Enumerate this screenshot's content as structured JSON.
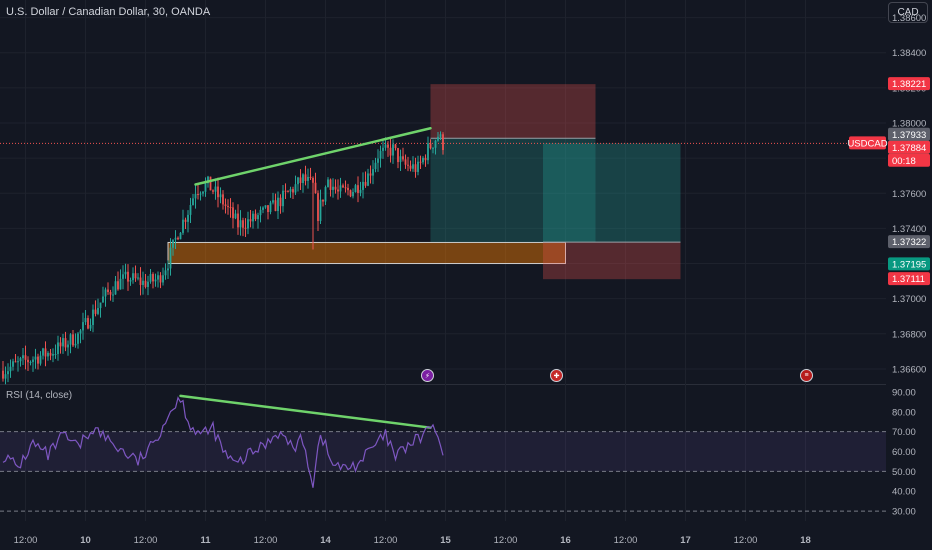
{
  "header": {
    "title": "U.S. Dollar / Canadian Dollar, 30, OANDA",
    "currency_button": "CAD"
  },
  "rsi_panel": {
    "title": "RSI (14, close)"
  },
  "colors": {
    "background": "#131722",
    "up": "#26a69a",
    "down": "#ef5350",
    "trendline": "#6fd36b",
    "rsi_line": "#7e57c2",
    "rsi_band": "#7e57c2",
    "stop_zone": "#ef5350",
    "target_zone": "#26a69a",
    "support_zone": "#f57c00"
  },
  "chart_data": [
    {
      "type": "candlestick",
      "title": "U.S. Dollar / Canadian Dollar, 30, OANDA",
      "symbol": "USDCAD",
      "ylim": [
        1.3652,
        1.387
      ],
      "y_ticks": [
        "1.36600",
        "1.36800",
        "1.37000",
        "1.37200",
        "1.37400",
        "1.37600",
        "1.37800",
        "1.38000",
        "1.38200",
        "1.38400",
        "1.38600"
      ],
      "x_tick_labels": [
        "12:00",
        "10",
        "12:00",
        "11",
        "12:00",
        "14",
        "12:00",
        "15",
        "12:00",
        "16",
        "12:00",
        "17",
        "12:00",
        "18"
      ],
      "price_labels": [
        {
          "text": "1.38221",
          "value": 1.38221,
          "kind": "stop"
        },
        {
          "text": "1.37933",
          "value": 1.37933,
          "kind": "neutral"
        },
        {
          "text": "1.37913",
          "value": 1.37913,
          "kind": "target"
        },
        {
          "text": "USDCAD",
          "value": 1.37884,
          "kind": "symbol"
        },
        {
          "text": "1.37884",
          "value": 1.37884,
          "kind": "stop"
        },
        {
          "text": "00:18",
          "value": 1.37845,
          "kind": "countdown"
        },
        {
          "text": "1.37322",
          "value": 1.37322,
          "kind": "neutral"
        },
        {
          "text": "1.37195",
          "value": 1.37195,
          "kind": "target"
        },
        {
          "text": "1.37111",
          "value": 1.37111,
          "kind": "stop"
        }
      ],
      "anchors": [
        {
          "x": 0,
          "close": 1.3659
        },
        {
          "x": 8,
          "close": 1.3664
        },
        {
          "x": 20,
          "close": 1.367
        },
        {
          "x": 30,
          "close": 1.3679
        },
        {
          "x": 40,
          "close": 1.37
        },
        {
          "x": 45,
          "close": 1.3708
        },
        {
          "x": 50,
          "close": 1.3712
        },
        {
          "x": 56,
          "close": 1.3709
        },
        {
          "x": 62,
          "close": 1.3711
        },
        {
          "x": 66,
          "close": 1.3721
        },
        {
          "x": 70,
          "close": 1.3738
        },
        {
          "x": 74,
          "close": 1.375
        },
        {
          "x": 77,
          "close": 1.3762
        },
        {
          "x": 82,
          "close": 1.3765
        },
        {
          "x": 88,
          "close": 1.3755
        },
        {
          "x": 94,
          "close": 1.3742
        },
        {
          "x": 100,
          "close": 1.3745
        },
        {
          "x": 108,
          "close": 1.3752
        },
        {
          "x": 114,
          "close": 1.376
        },
        {
          "x": 120,
          "close": 1.3768
        },
        {
          "x": 124,
          "close": 1.3764
        },
        {
          "x": 126,
          "close": 1.3748
        },
        {
          "x": 130,
          "close": 1.3768
        },
        {
          "x": 134,
          "close": 1.376
        },
        {
          "x": 140,
          "close": 1.3762
        },
        {
          "x": 146,
          "close": 1.377
        },
        {
          "x": 150,
          "close": 1.3782
        },
        {
          "x": 156,
          "close": 1.3785
        },
        {
          "x": 160,
          "close": 1.3776
        },
        {
          "x": 166,
          "close": 1.3774
        },
        {
          "x": 170,
          "close": 1.3785
        },
        {
          "x": 174,
          "close": 1.3793
        },
        {
          "x": 176,
          "close": 1.3788
        }
      ],
      "spikes": [
        {
          "x": 124,
          "low": 1.3728
        }
      ],
      "bars_per_day": 48,
      "overlays": {
        "trendline": {
          "x": [
            77,
            171
          ],
          "y": [
            1.3765,
            1.3797
          ]
        },
        "support_zone": {
          "x": [
            66,
            225
          ],
          "y": [
            1.372,
            1.3732
          ]
        },
        "short_position": {
          "entry": 1.37913,
          "stop": 1.38221,
          "target": 1.37322,
          "x": [
            171,
            237
          ]
        },
        "long_position": {
          "entry": 1.37322,
          "stop": 1.37111,
          "target": 1.37884,
          "x": [
            216,
            271
          ]
        }
      }
    },
    {
      "type": "line",
      "title": "RSI (14, close)",
      "ylim": [
        25,
        93
      ],
      "y_ticks": [
        "30.00",
        "40.00",
        "50.00",
        "60.00",
        "70.00",
        "80.00",
        "90.00"
      ],
      "band": [
        50,
        70
      ],
      "anchors": [
        {
          "x": 0,
          "y": 58
        },
        {
          "x": 6,
          "y": 52
        },
        {
          "x": 12,
          "y": 64
        },
        {
          "x": 18,
          "y": 58
        },
        {
          "x": 24,
          "y": 68
        },
        {
          "x": 30,
          "y": 62
        },
        {
          "x": 36,
          "y": 72
        },
        {
          "x": 42,
          "y": 66
        },
        {
          "x": 48,
          "y": 60
        },
        {
          "x": 54,
          "y": 55
        },
        {
          "x": 60,
          "y": 63
        },
        {
          "x": 64,
          "y": 74
        },
        {
          "x": 67,
          "y": 80
        },
        {
          "x": 70,
          "y": 87
        },
        {
          "x": 72,
          "y": 84
        },
        {
          "x": 75,
          "y": 73
        },
        {
          "x": 80,
          "y": 68
        },
        {
          "x": 84,
          "y": 72
        },
        {
          "x": 88,
          "y": 60
        },
        {
          "x": 93,
          "y": 53
        },
        {
          "x": 98,
          "y": 58
        },
        {
          "x": 104,
          "y": 63
        },
        {
          "x": 110,
          "y": 70
        },
        {
          "x": 116,
          "y": 62
        },
        {
          "x": 120,
          "y": 66
        },
        {
          "x": 124,
          "y": 44
        },
        {
          "x": 127,
          "y": 70
        },
        {
          "x": 131,
          "y": 55
        },
        {
          "x": 136,
          "y": 51
        },
        {
          "x": 142,
          "y": 54
        },
        {
          "x": 148,
          "y": 62
        },
        {
          "x": 153,
          "y": 68
        },
        {
          "x": 157,
          "y": 57
        },
        {
          "x": 162,
          "y": 63
        },
        {
          "x": 167,
          "y": 67
        },
        {
          "x": 171,
          "y": 73
        },
        {
          "x": 174,
          "y": 67
        },
        {
          "x": 176,
          "y": 58
        }
      ],
      "trendline": {
        "x": [
          71,
          171
        ],
        "y": [
          88,
          72
        ]
      }
    }
  ]
}
